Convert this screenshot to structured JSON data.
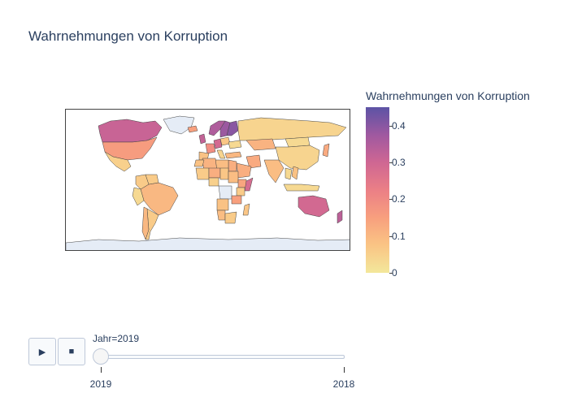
{
  "title": "Wahrnehmungen von Korruption",
  "colorbar": {
    "title": "Wahrnehmungen von Korruption",
    "ticks": [
      "0",
      "0.1",
      "0.2",
      "0.3",
      "0.4"
    ],
    "tick_values": [
      0,
      0.1,
      0.2,
      0.3,
      0.4
    ],
    "range": [
      0,
      0.45
    ],
    "colors": [
      "#f3e79b",
      "#fac484",
      "#f8a07e",
      "#eb7f86",
      "#ce6693",
      "#a059a0",
      "#5c53a5"
    ],
    "missing_color": "#e5ecf6"
  },
  "animation": {
    "play_icon": "play-icon",
    "stop_icon": "stop-icon",
    "slider_label": "Jahr=2019",
    "steps": [
      "2019",
      "2018"
    ],
    "active_index": 0
  },
  "chart_data": {
    "type": "choropleth",
    "title": "Wahrnehmungen von Korruption",
    "colorbar_title": "Wahrnehmungen von Korruption",
    "color_range": [
      0,
      0.45
    ],
    "frame": "Jahr=2019",
    "regions": [
      {
        "name": "Canada",
        "value": 0.31
      },
      {
        "name": "United States",
        "value": 0.16
      },
      {
        "name": "Mexico",
        "value": 0.05
      },
      {
        "name": "Greenland",
        "value": null
      },
      {
        "name": "Brazil",
        "value": 0.1
      },
      {
        "name": "Argentina",
        "value": 0.06
      },
      {
        "name": "Colombia",
        "value": 0.06
      },
      {
        "name": "Peru",
        "value": 0.03
      },
      {
        "name": "Chile",
        "value": 0.1
      },
      {
        "name": "Venezuela",
        "value": 0.06
      },
      {
        "name": "Iceland",
        "value": 0.15
      },
      {
        "name": "Norway",
        "value": 0.35
      },
      {
        "name": "Sweden",
        "value": 0.38
      },
      {
        "name": "Finland",
        "value": 0.4
      },
      {
        "name": "United Kingdom",
        "value": 0.32
      },
      {
        "name": "France",
        "value": 0.19
      },
      {
        "name": "Spain",
        "value": 0.08
      },
      {
        "name": "Germany",
        "value": 0.29
      },
      {
        "name": "Italy",
        "value": 0.04
      },
      {
        "name": "Poland",
        "value": 0.07
      },
      {
        "name": "Ukraine",
        "value": 0.03
      },
      {
        "name": "Russia",
        "value": 0.04
      },
      {
        "name": "Kazakhstan",
        "value": 0.11
      },
      {
        "name": "Mongolia",
        "value": 0.03
      },
      {
        "name": "China",
        "value": 0.04
      },
      {
        "name": "India",
        "value": 0.09
      },
      {
        "name": "Iran",
        "value": 0.13
      },
      {
        "name": "Saudi Arabia",
        "value": 0.12
      },
      {
        "name": "Turkey",
        "value": 0.1
      },
      {
        "name": "Egypt",
        "value": 0.12
      },
      {
        "name": "Libya",
        "value": 0.09
      },
      {
        "name": "Algeria",
        "value": 0.11
      },
      {
        "name": "Morocco",
        "value": 0.08
      },
      {
        "name": "Mali",
        "value": 0.06
      },
      {
        "name": "Niger",
        "value": 0.12
      },
      {
        "name": "Chad",
        "value": 0.07
      },
      {
        "name": "Sudan",
        "value": 0.09
      },
      {
        "name": "Ethiopia",
        "value": 0.14
      },
      {
        "name": "Somalia",
        "value": 0.28
      },
      {
        "name": "Nigeria",
        "value": 0.05
      },
      {
        "name": "DR Congo",
        "value": null
      },
      {
        "name": "Kenya",
        "value": 0.06
      },
      {
        "name": "Tanzania",
        "value": 0.15
      },
      {
        "name": "Angola",
        "value": 0.08
      },
      {
        "name": "Namibia",
        "value": 0.09
      },
      {
        "name": "South Africa",
        "value": 0.06
      },
      {
        "name": "Madagascar",
        "value": 0.07
      },
      {
        "name": "Thailand",
        "value": 0.03
      },
      {
        "name": "Vietnam",
        "value": 0.08
      },
      {
        "name": "Indonesia",
        "value": 0.03
      },
      {
        "name": "Japan",
        "value": 0.13
      },
      {
        "name": "Australia",
        "value": 0.29
      },
      {
        "name": "New Zealand",
        "value": 0.33
      },
      {
        "name": "Antarctica",
        "value": null
      }
    ]
  }
}
